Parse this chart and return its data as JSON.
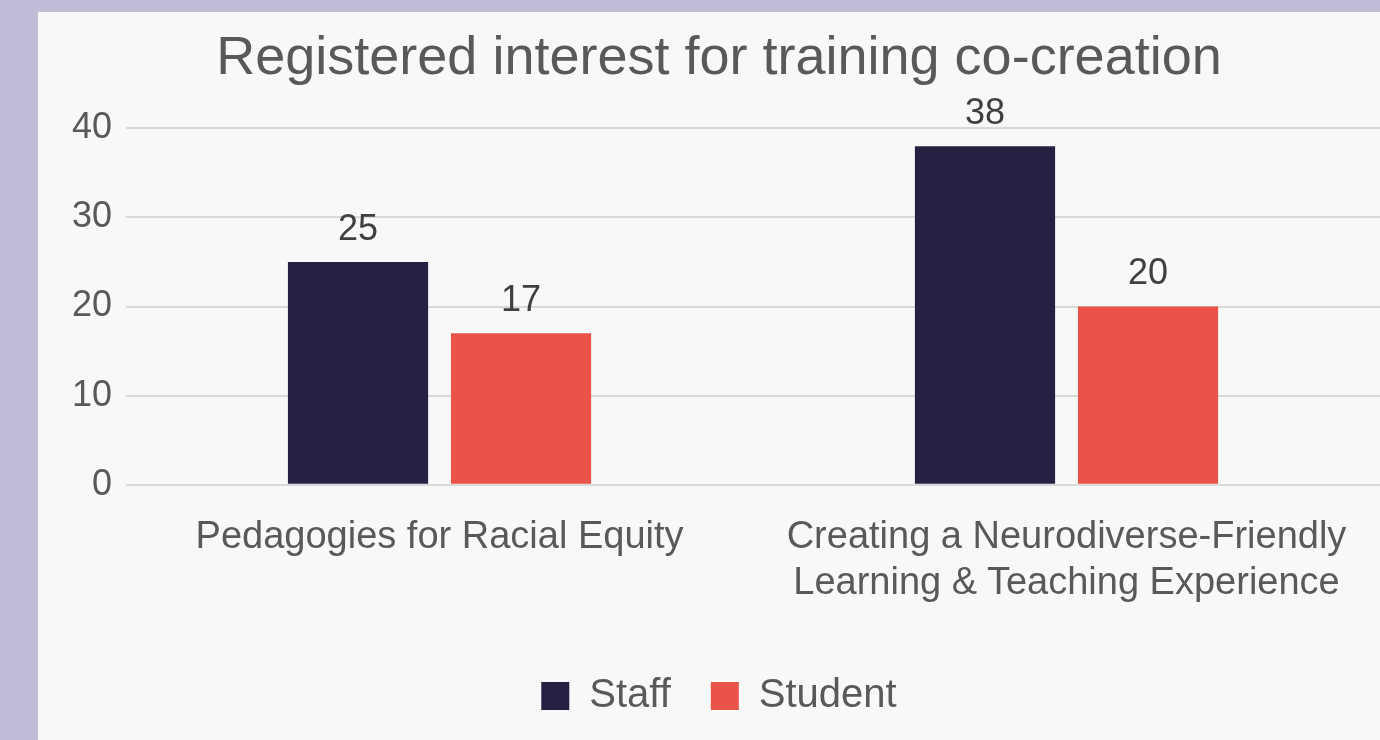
{
  "chart_data": {
    "type": "bar",
    "title": "Registered interest for training co-creation",
    "categories": [
      "Pedagogies for Racial Equity",
      "Creating a Neurodiverse-Friendly Learning & Teaching Experience"
    ],
    "series": [
      {
        "name": "Staff",
        "color": "#262043",
        "values": [
          25,
          38
        ]
      },
      {
        "name": "Student",
        "color": "#e9534a",
        "values": [
          17,
          20
        ]
      }
    ],
    "ylim": [
      0,
      40
    ],
    "yticks": [
      0,
      10,
      20,
      30,
      40
    ],
    "grid": "y",
    "legend": "bottom",
    "data_labels": true
  }
}
